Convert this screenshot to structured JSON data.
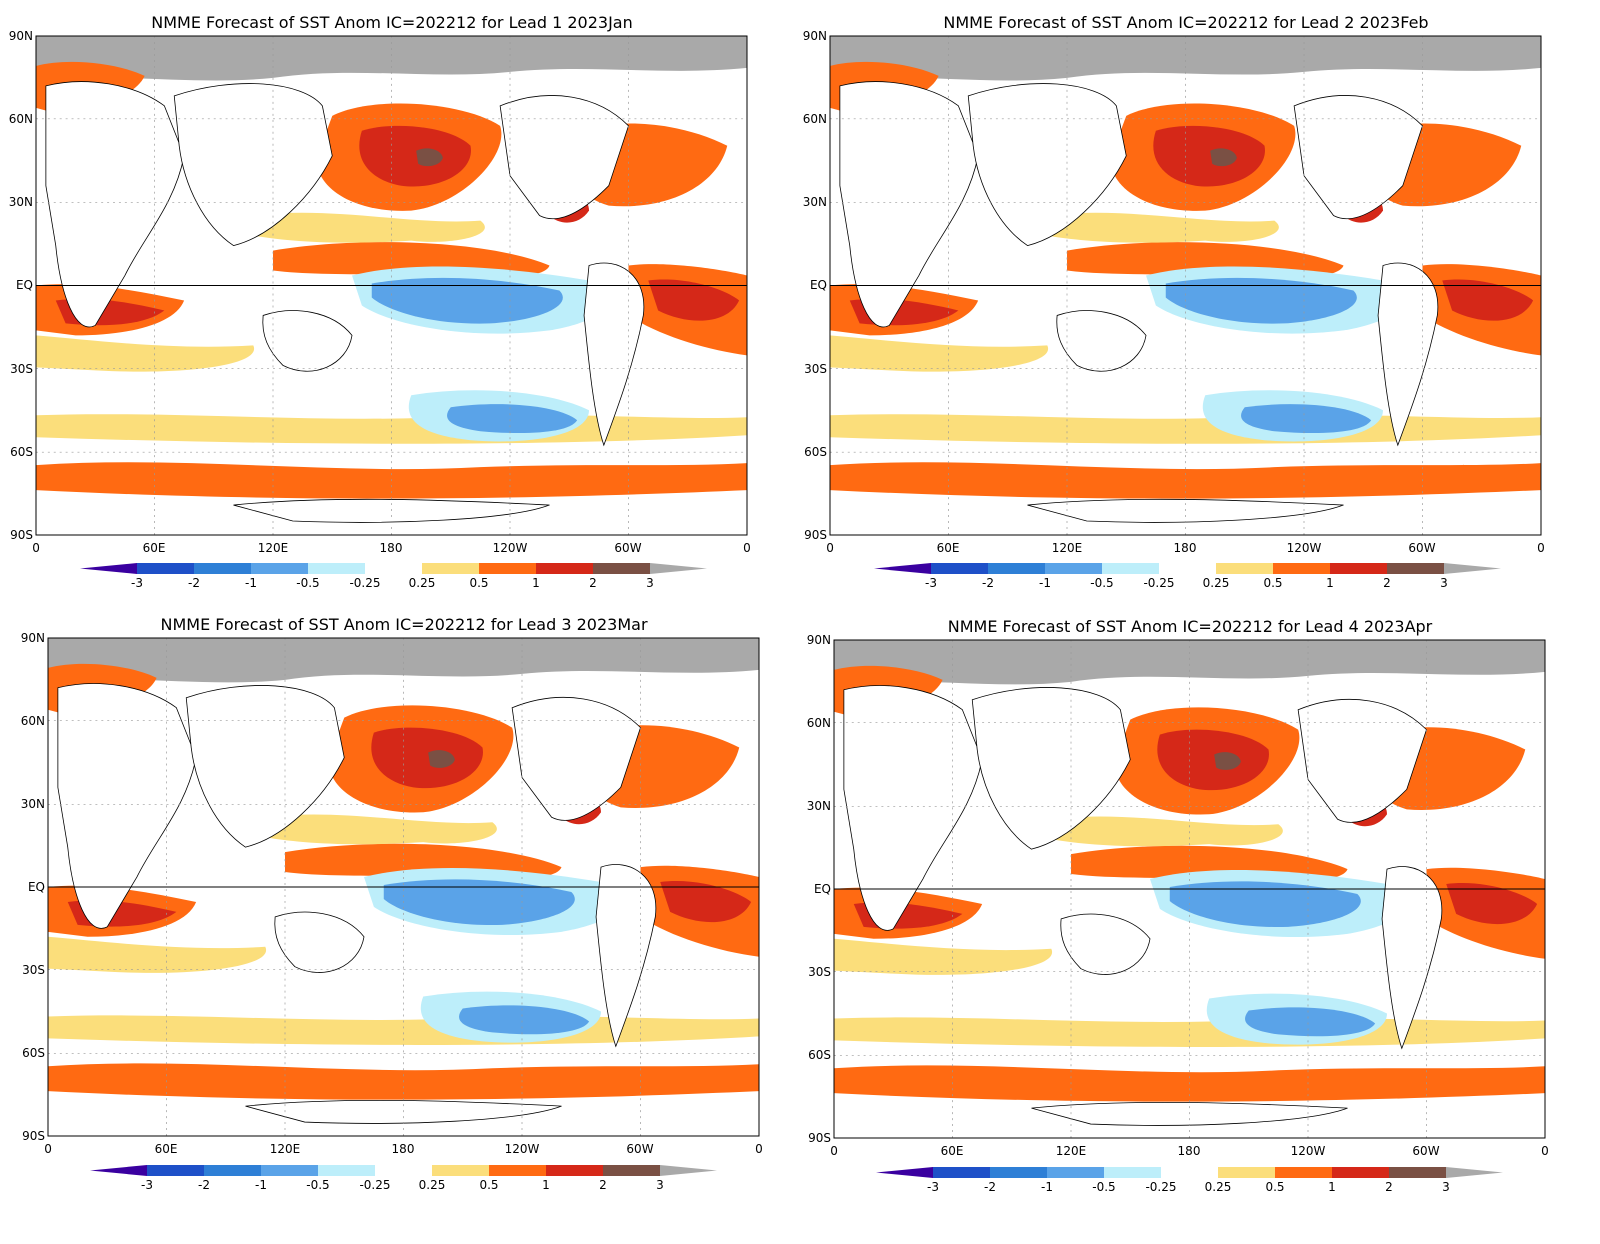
{
  "panels": [
    {
      "title": "NMME Forecast of SST Anom IC=202212 for Lead 1 2023Jan"
    },
    {
      "title": "NMME Forecast of SST Anom IC=202212 for Lead 2 2023Feb"
    },
    {
      "title": "NMME Forecast of SST Anom IC=202212 for Lead 3 2023Mar"
    },
    {
      "title": "NMME Forecast of SST Anom IC=202212 for Lead 4 2023Apr"
    }
  ],
  "lat_labels": [
    "90N",
    "60N",
    "30N",
    "EQ",
    "30S",
    "60S",
    "90S"
  ],
  "lon_labels": [
    "0",
    "60E",
    "120E",
    "180",
    "120W",
    "60W",
    "0"
  ],
  "colorbar": {
    "labels": [
      "-3",
      "-2",
      "-1",
      "-0.5",
      "-0.25",
      "0.25",
      "0.5",
      "1",
      "2",
      "3"
    ],
    "colors": [
      "#1e50c8",
      "#2e7fd6",
      "#5aa3e8",
      "#bdeefa",
      "#ffffff",
      "#fbde7b",
      "#ff6a12",
      "#d52818",
      "#7a5044"
    ],
    "low_extend_color": "#3a00a0",
    "high_extend_color": "#a9a9a9"
  },
  "colors": {
    "land": "#ffffff",
    "ice": "#a9a9a9",
    "ocean_background": "#ffffff"
  }
}
